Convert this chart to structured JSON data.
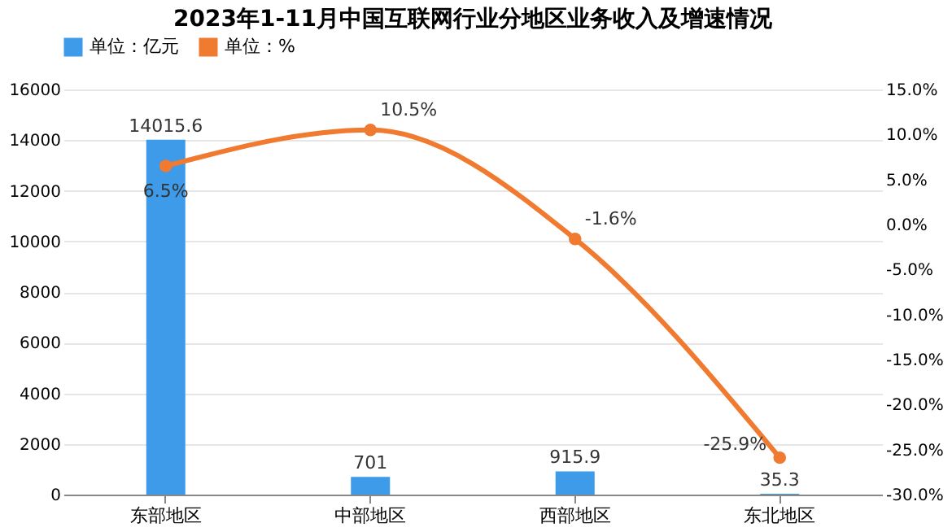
{
  "chart_data": {
    "type": "bar",
    "title": "2023年1-11月中国互联网行业分地区业务收入及增速情况",
    "categories": [
      "东部地区",
      "中部地区",
      "西部地区",
      "东北地区"
    ],
    "series": [
      {
        "name": "单位：亿元",
        "color": "#3d9be9",
        "values": [
          14015.6,
          701,
          915.9,
          35.3
        ]
      },
      {
        "name": "单位：%",
        "type": "line",
        "axis": "y2",
        "color": "#f07a2f",
        "marker": "circle",
        "values": [
          6.5,
          10.5,
          -1.6,
          -25.9
        ],
        "value_labels": [
          "6.5%",
          "10.5%",
          "-1.6%",
          "-25.9%"
        ]
      }
    ],
    "data_labels": true,
    "ylim": [
      0,
      16000
    ],
    "yticks": [
      0,
      2000,
      4000,
      6000,
      8000,
      10000,
      12000,
      14000,
      16000
    ],
    "y2lim": [
      -30,
      15
    ],
    "y2ticks": [
      {
        "value": 15,
        "label": "15.0%"
      },
      {
        "value": 10,
        "label": "10.0%"
      },
      {
        "value": 5,
        "label": "5.0%"
      },
      {
        "value": 0,
        "label": "0.0%"
      },
      {
        "value": -5,
        "label": "-5.0%"
      },
      {
        "value": -10,
        "label": "-10.0%"
      },
      {
        "value": -15,
        "label": "-15.0%"
      },
      {
        "value": -20,
        "label": "-20.0%"
      },
      {
        "value": -25,
        "label": "-25.0%"
      },
      {
        "value": -30,
        "label": "-30.0%"
      }
    ],
    "grid": "y",
    "legend": "top"
  }
}
